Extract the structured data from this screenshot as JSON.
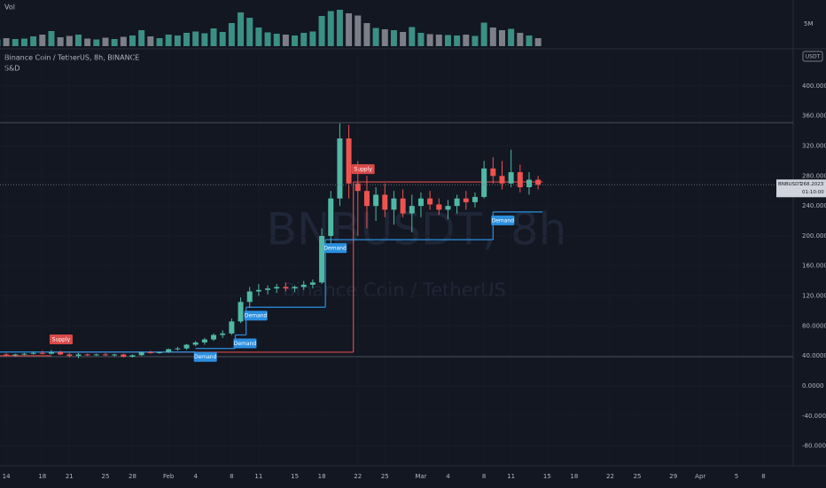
{
  "chart_data": {
    "type": "candlestick",
    "title": "Binance Coin / TetherUS, 8h, BINANCE",
    "indicator": "S&D",
    "volume_label": "Vol",
    "watermark": "BNBUSDT, 8h",
    "watermark_subtitle": "Binance Coin / TetherUS",
    "currency": "USDT",
    "colors": {
      "up": "#4fb9a6",
      "down": "#ef5350",
      "volume_up": "#3b8f84",
      "volume_down": "#7c7f88",
      "supply": "#d94a4a",
      "demand": "#2b8fe0"
    },
    "x": [
      13,
      14,
      15,
      16,
      17,
      18,
      19,
      20,
      21,
      22,
      23,
      24,
      25,
      26,
      27,
      28,
      29,
      30,
      31,
      32,
      33,
      34,
      35,
      36,
      37,
      38,
      39,
      40,
      41,
      42,
      43,
      44,
      45,
      46,
      47,
      48,
      49,
      50,
      51,
      52,
      53,
      54,
      55,
      56,
      57,
      58,
      59,
      60,
      61,
      62,
      63,
      64,
      65,
      66,
      67,
      68,
      69,
      70,
      71,
      72,
      73
    ],
    "open": [
      41,
      42,
      41,
      42,
      43,
      44,
      43,
      45,
      42,
      40,
      42,
      41,
      42,
      41,
      42,
      39,
      41,
      45,
      44,
      45,
      49,
      50,
      55,
      58,
      62,
      68,
      70,
      86,
      112,
      126,
      128,
      130,
      132,
      130,
      132,
      135,
      138,
      200,
      250,
      330,
      270,
      260,
      240,
      255,
      235,
      250,
      230,
      240,
      250,
      242,
      235,
      240,
      250,
      245,
      252,
      290,
      280,
      270,
      285,
      265,
      275
    ],
    "high": [
      43,
      44,
      43,
      44,
      46,
      47,
      48,
      47,
      44,
      44,
      43,
      43,
      44,
      43,
      43,
      42,
      46,
      47,
      46,
      50,
      52,
      56,
      60,
      64,
      70,
      74,
      90,
      118,
      132,
      136,
      134,
      136,
      138,
      134,
      140,
      142,
      210,
      260,
      350,
      348,
      300,
      280,
      265,
      270,
      260,
      262,
      255,
      258,
      260,
      250,
      248,
      255,
      260,
      258,
      300,
      305,
      300,
      315,
      295,
      285,
      280
    ],
    "low": [
      39,
      40,
      39,
      41,
      42,
      42,
      42,
      41,
      38,
      37,
      40,
      40,
      40,
      39,
      38,
      38,
      40,
      43,
      43,
      44,
      47,
      48,
      53,
      55,
      60,
      64,
      68,
      84,
      104,
      120,
      122,
      124,
      126,
      125,
      128,
      130,
      136,
      190,
      240,
      250,
      200,
      210,
      220,
      225,
      215,
      225,
      205,
      225,
      235,
      228,
      222,
      230,
      235,
      238,
      250,
      270,
      262,
      265,
      258,
      255,
      262
    ],
    "close": [
      42,
      41,
      42,
      43,
      44,
      43,
      45,
      42,
      40,
      42,
      41,
      42,
      41,
      42,
      39,
      41,
      45,
      44,
      45,
      49,
      50,
      55,
      58,
      62,
      68,
      70,
      86,
      112,
      126,
      128,
      130,
      132,
      130,
      132,
      135,
      138,
      200,
      250,
      330,
      270,
      260,
      240,
      255,
      235,
      250,
      230,
      240,
      250,
      242,
      235,
      240,
      250,
      245,
      252,
      290,
      280,
      270,
      285,
      265,
      275,
      268.2023
    ],
    "volume": [
      1500000,
      1800000,
      1600000,
      1700000,
      2200000,
      2600000,
      3400000,
      2000000,
      2300000,
      2600000,
      1700000,
      1500000,
      1900000,
      1600000,
      2100000,
      2400000,
      3600000,
      2200000,
      1800000,
      2600000,
      2400000,
      3000000,
      3300000,
      2900000,
      4000000,
      3200000,
      5200000,
      7600000,
      6400000,
      4200000,
      3100000,
      2800000,
      2600000,
      2400000,
      3000000,
      3300000,
      6800000,
      7900000,
      8200000,
      7400000,
      6900000,
      5200000,
      4100000,
      3800000,
      3600000,
      3200000,
      4300000,
      3000000,
      2700000,
      2600000,
      2500000,
      2400000,
      2600000,
      2300000,
      5300000,
      4200000,
      3600000,
      3900000,
      3000000,
      2400000,
      1800000
    ],
    "volume_ylim": [
      0,
      10000000
    ],
    "volume_yticks": [
      {
        "value": 5000000,
        "label": "5M"
      }
    ],
    "supply_zones": [
      {
        "label": "Supply",
        "x": 19,
        "value": 45
      },
      {
        "label": "Supply",
        "x": 52.5,
        "value": 272
      }
    ],
    "demand_zones": [
      {
        "label": "Demand",
        "x": 35,
        "value": 50
      },
      {
        "label": "Demand",
        "x": 39.4,
        "value": 68
      },
      {
        "label": "Demand",
        "x": 40.6,
        "value": 105
      },
      {
        "label": "Demand",
        "x": 49.4,
        "value": 195
      },
      {
        "label": "Demand",
        "x": 68,
        "value": 232
      }
    ],
    "hlines": [
      351,
      39
    ],
    "price_tag": {
      "symbol": "BNBUSDT",
      "value": 268.2023,
      "countdown": "01:10:00"
    },
    "xlim": [
      13.3,
      101.3
    ],
    "xticks": [
      {
        "value": 14,
        "label": "14"
      },
      {
        "value": 18,
        "label": "18"
      },
      {
        "value": 21,
        "label": "21"
      },
      {
        "value": 25,
        "label": "25"
      },
      {
        "value": 28,
        "label": "28"
      },
      {
        "value": 32,
        "label": "Feb"
      },
      {
        "value": 35,
        "label": "4"
      },
      {
        "value": 39,
        "label": "8"
      },
      {
        "value": 42,
        "label": "11"
      },
      {
        "value": 46,
        "label": "15"
      },
      {
        "value": 49,
        "label": "18"
      },
      {
        "value": 53,
        "label": "22"
      },
      {
        "value": 56,
        "label": "25"
      },
      {
        "value": 60,
        "label": "Mar"
      },
      {
        "value": 63,
        "label": "4"
      },
      {
        "value": 67,
        "label": "8"
      },
      {
        "value": 70,
        "label": "11"
      },
      {
        "value": 74,
        "label": "15"
      },
      {
        "value": 77,
        "label": "18"
      },
      {
        "value": 81,
        "label": "22"
      },
      {
        "value": 84,
        "label": "25"
      },
      {
        "value": 88,
        "label": "29"
      },
      {
        "value": 91,
        "label": "Apr"
      },
      {
        "value": 95,
        "label": "5"
      },
      {
        "value": 98,
        "label": "8"
      }
    ],
    "ylim": [
      -106.5,
      446
    ],
    "yticks": [
      {
        "value": -80,
        "label": "-80.0000"
      },
      {
        "value": -40,
        "label": "-40.0000"
      },
      {
        "value": 0,
        "label": "0.0000"
      },
      {
        "value": 40,
        "label": "40.0000"
      },
      {
        "value": 80,
        "label": "80.0000"
      },
      {
        "value": 120,
        "label": "120.0000"
      },
      {
        "value": 160,
        "label": "160.0000"
      },
      {
        "value": 200,
        "label": "200.0000"
      },
      {
        "value": 240,
        "label": "240.0000"
      },
      {
        "value": 280,
        "label": "280.0000"
      },
      {
        "value": 320,
        "label": "320.0000"
      },
      {
        "value": 360,
        "label": "360.0000"
      },
      {
        "value": 400,
        "label": "400.0000"
      }
    ]
  }
}
